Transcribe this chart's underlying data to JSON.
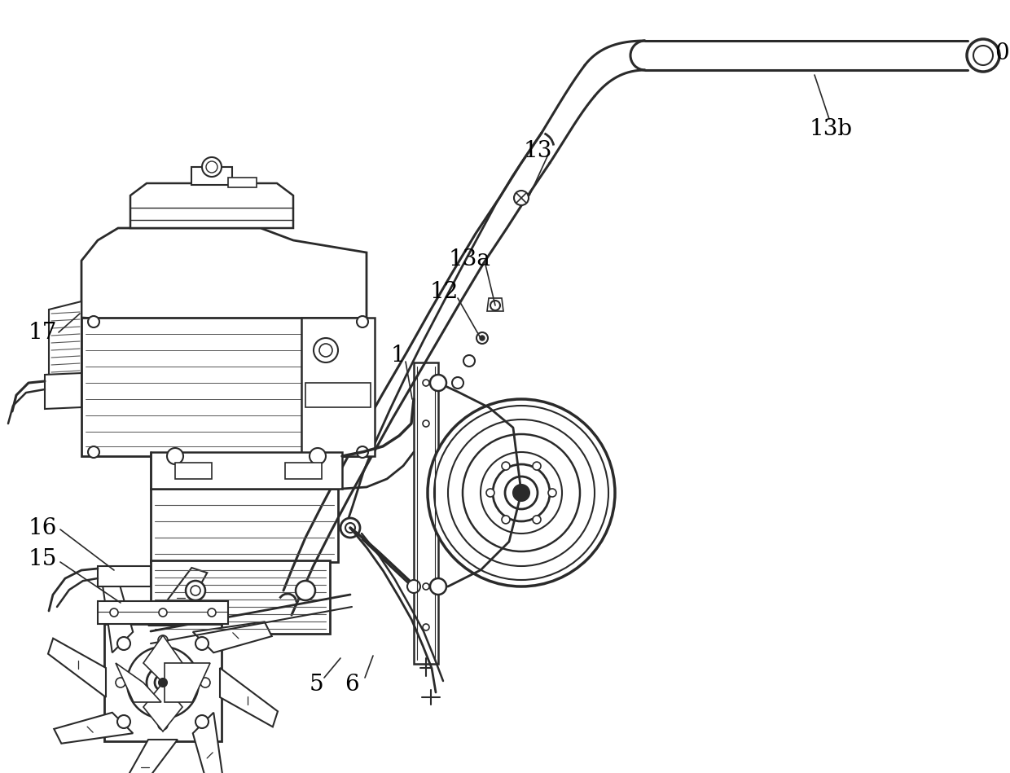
{
  "bg_color": "#ffffff",
  "line_color": "#2a2a2a",
  "label_color": "#000000",
  "figsize": [
    12.4,
    9.49
  ],
  "dpi": 100,
  "label_fontsize": 20
}
